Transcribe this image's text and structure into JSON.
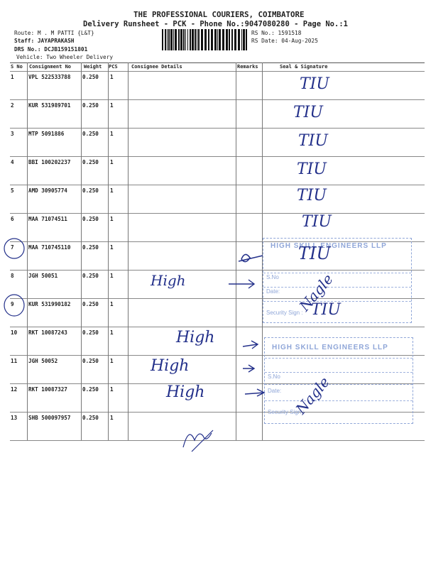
{
  "header": {
    "title": "THE PROFESSIONAL COURIERS, COIMBATORE",
    "subtitle": "Delivery Runsheet - PCK - Phone No.:9047080280 - Page No.:1",
    "route": "Route: M . M PATTI {L&T}",
    "staff": "Staff: JAYAPRAKASH",
    "drs_no": "DRS No.: DCJB159151801",
    "vehicle": "Vehicle: Two Wheeler Delivery",
    "rs_no": "RS No.: 1591518",
    "rs_date": "RS Date: 04-Aug-2025"
  },
  "table": {
    "columns": [
      "S No",
      "Consignment No",
      "Weight",
      "PCS",
      "Consignee Details",
      "Remarks",
      "Seal & Signature"
    ],
    "rows": [
      {
        "sno": "1",
        "consignment": "VPL 522533788",
        "weight": "0.250",
        "pcs": "1"
      },
      {
        "sno": "2",
        "consignment": "KUR 531989701",
        "weight": "0.250",
        "pcs": "1"
      },
      {
        "sno": "3",
        "consignment": "MTP 5091886",
        "weight": "0.250",
        "pcs": "1"
      },
      {
        "sno": "4",
        "consignment": "BBI 100202237",
        "weight": "0.250",
        "pcs": "1"
      },
      {
        "sno": "5",
        "consignment": "AMD 30905774",
        "weight": "0.250",
        "pcs": "1"
      },
      {
        "sno": "6",
        "consignment": "MAA 71074511",
        "weight": "0.250",
        "pcs": "1"
      },
      {
        "sno": "7",
        "consignment": "MAA 710745110",
        "weight": "0.250",
        "pcs": "1"
      },
      {
        "sno": "8",
        "consignment": "JGH 50051",
        "weight": "0.250",
        "pcs": "1"
      },
      {
        "sno": "9",
        "consignment": "KUR 531990182",
        "weight": "0.250",
        "pcs": "1"
      },
      {
        "sno": "10",
        "consignment": "RKT 10087243",
        "weight": "0.250",
        "pcs": "1"
      },
      {
        "sno": "11",
        "consignment": "JGH 50052",
        "weight": "0.250",
        "pcs": "1"
      },
      {
        "sno": "12",
        "consignment": "RKT 10087327",
        "weight": "0.250",
        "pcs": "1"
      },
      {
        "sno": "13",
        "consignment": "SHB 500097957",
        "weight": "0.250",
        "pcs": "1"
      }
    ]
  },
  "handwriting": {
    "signatures": [
      "TIU",
      "TIU",
      "TIU",
      "TIU",
      "TIU",
      "TIU",
      "TIU",
      "TIU"
    ],
    "remarks": [
      "High",
      "High",
      "High",
      "High"
    ],
    "stamp_sign": "Nagle"
  },
  "stamps": [
    {
      "company": "HIGH SKILL ENGINEERS LLP",
      "sno_label": "S.No",
      "date_label": "Date:",
      "sign_label": "Security Sign :"
    },
    {
      "company": "HIGH SKILL ENGINEERS LLP",
      "sno_label": "S.No",
      "date_label": "Date:",
      "sign_label": "Security Sign :"
    }
  ],
  "colors": {
    "ink": "#23308a",
    "stamp": "#8fa6d8"
  }
}
